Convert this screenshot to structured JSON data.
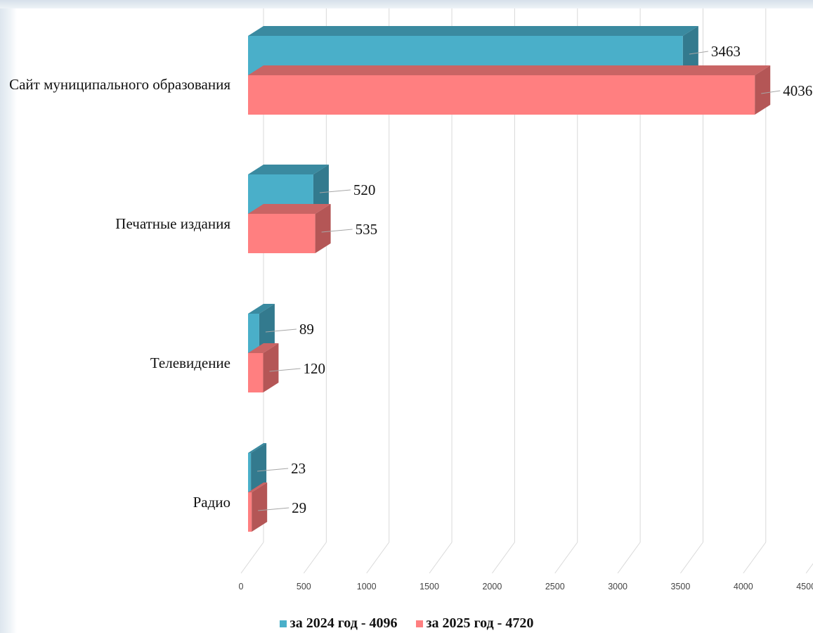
{
  "chart_data": {
    "type": "bar",
    "orientation": "horizontal",
    "categories": [
      "Сайт муниципального образования",
      "Печатные издания",
      "Телевидение",
      "Радио"
    ],
    "series": [
      {
        "name": "за 2024 год - 4096",
        "values": [
          3463,
          520,
          89,
          23
        ],
        "color": "#4aafc9",
        "top_color": "#3a8aa0",
        "side_color": "#337a8e"
      },
      {
        "name": "за 2025 год - 4720",
        "values": [
          4036,
          535,
          120,
          29
        ],
        "color": "#ff7f80",
        "top_color": "#c96464",
        "side_color": "#b45656"
      }
    ],
    "xticks": [
      "0",
      "500",
      "1000",
      "1500",
      "2000",
      "2500",
      "3000",
      "3500",
      "4000",
      "4500"
    ],
    "xlim": [
      0,
      4500
    ],
    "grid": true,
    "legend": "bottom-center"
  }
}
